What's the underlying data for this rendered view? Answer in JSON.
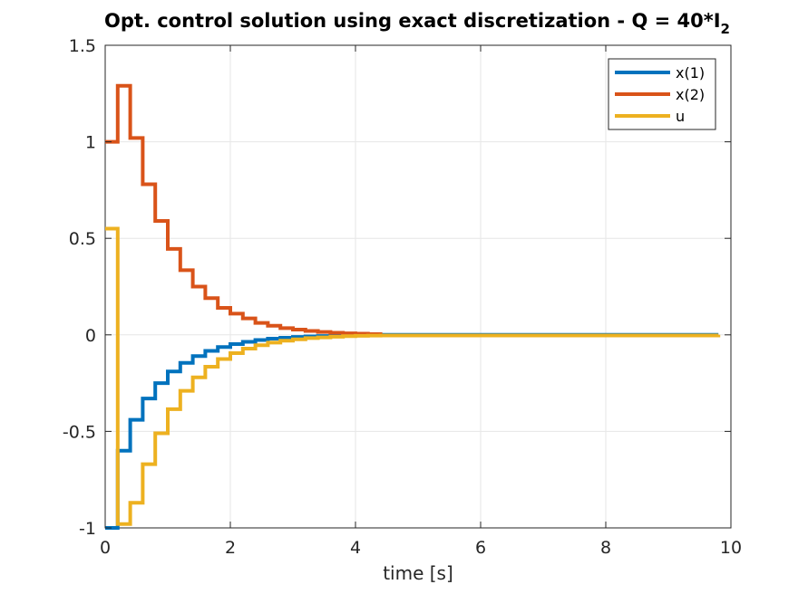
{
  "chart_data": {
    "type": "line",
    "style": "stairs",
    "title": "Opt. control solution using exact discretization - Q = 40*I",
    "title_subscript": "2",
    "xlabel": "time [s]",
    "ylabel": "",
    "xlim": [
      0,
      10
    ],
    "ylim": [
      -1,
      1.5
    ],
    "xticks": [
      0,
      2,
      4,
      6,
      8,
      10
    ],
    "xtick_labels": [
      "0",
      "2",
      "4",
      "6",
      "8",
      "10"
    ],
    "yticks": [
      -1,
      -0.5,
      0,
      0.5,
      1,
      1.5
    ],
    "ytick_labels": [
      "-1",
      "-0.5",
      "0",
      "0.5",
      "1",
      "1.5"
    ],
    "grid": true,
    "legend_position": "top-right",
    "series": [
      {
        "name": "x(1)",
        "color": "#0072bd",
        "x": [
          0,
          0.2,
          0.4,
          0.6,
          0.8,
          1.0,
          1.2,
          1.4,
          1.6,
          1.8,
          2.0,
          2.2,
          2.4,
          2.6,
          2.8,
          3.0,
          3.2,
          3.4,
          3.6,
          3.8,
          4.0,
          4.2,
          4.4,
          9.8
        ],
        "y": [
          -1,
          -0.6,
          -0.44,
          -0.33,
          -0.25,
          -0.19,
          -0.145,
          -0.11,
          -0.083,
          -0.063,
          -0.048,
          -0.036,
          -0.027,
          -0.02,
          -0.015,
          -0.011,
          -0.008,
          -0.006,
          -0.004,
          -0.003,
          -0.002,
          -0.001,
          0,
          0
        ]
      },
      {
        "name": "x(2)",
        "color": "#d95319",
        "x": [
          0,
          0.2,
          0.4,
          0.6,
          0.8,
          1.0,
          1.2,
          1.4,
          1.6,
          1.8,
          2.0,
          2.2,
          2.4,
          2.6,
          2.8,
          3.0,
          3.2,
          3.4,
          3.6,
          3.8,
          4.0,
          4.2,
          4.4
        ],
        "y": [
          1,
          1.29,
          1.02,
          0.78,
          0.59,
          0.445,
          0.335,
          0.25,
          0.19,
          0.14,
          0.11,
          0.085,
          0.062,
          0.047,
          0.035,
          0.027,
          0.02,
          0.015,
          0.011,
          0.008,
          0.006,
          0.004,
          0.003
        ]
      },
      {
        "name": "u",
        "color": "#edb120",
        "x": [
          0,
          0.2,
          0.4,
          0.6,
          0.8,
          1.0,
          1.2,
          1.4,
          1.6,
          1.8,
          2.0,
          2.2,
          2.4,
          2.6,
          2.8,
          3.0,
          3.2,
          3.4,
          3.6,
          3.8,
          4.0,
          4.2,
          4.4,
          9.8
        ],
        "y": [
          0.55,
          -0.98,
          -0.87,
          -0.67,
          -0.51,
          -0.385,
          -0.29,
          -0.22,
          -0.165,
          -0.125,
          -0.095,
          -0.071,
          -0.054,
          -0.04,
          -0.03,
          -0.023,
          -0.017,
          -0.013,
          -0.01,
          -0.007,
          -0.005,
          -0.004,
          -0.003,
          0
        ]
      }
    ]
  }
}
